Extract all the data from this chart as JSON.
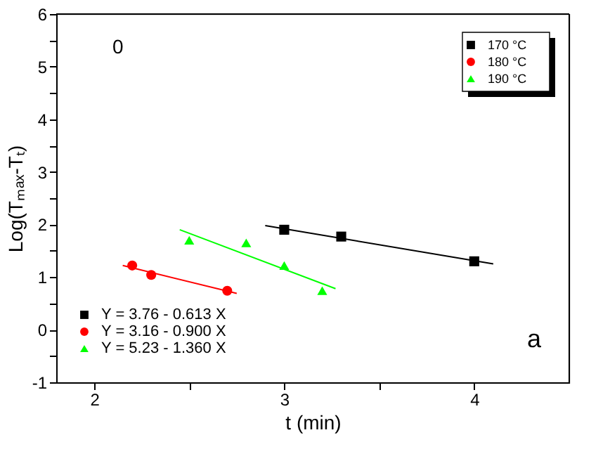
{
  "chart_data": {
    "type": "scatter",
    "xlabel": "t (min)",
    "ylabel": "Log(Tₘₐₓ-Tₜ)",
    "xlim": [
      1.8,
      4.5
    ],
    "ylim": [
      -1,
      6
    ],
    "xticks": [
      2,
      {
        "value": 2.5,
        "label": null
      },
      3,
      {
        "value": 3.5,
        "label": null
      },
      4
    ],
    "yticks": [
      -1,
      {
        "value": -0.5,
        "label": null
      },
      0,
      {
        "value": 0.5,
        "label": null
      },
      1,
      {
        "value": 1.5,
        "label": null
      },
      2,
      {
        "value": 2.5,
        "label": null
      },
      3,
      {
        "value": 3.5,
        "label": null
      },
      4,
      {
        "value": 4.5,
        "label": null
      },
      5,
      {
        "value": 5.5,
        "label": null
      },
      6
    ],
    "grid": false,
    "legend": "top right",
    "annotations": [
      "0",
      "a"
    ],
    "series": [
      {
        "name": "170 °C",
        "color": "#000000",
        "marker": "square",
        "x": [
          3.0,
          3.3,
          4.0
        ],
        "values": [
          1.9,
          1.77,
          1.3
        ]
      },
      {
        "name": "180 °C",
        "color": "#ff0000",
        "marker": "circle",
        "x": [
          2.2,
          2.3,
          2.7
        ],
        "values": [
          1.22,
          1.04,
          0.74
        ]
      },
      {
        "name": "190 °C",
        "color": "#00ff00",
        "marker": "triangle",
        "x": [
          2.5,
          2.8,
          3.0,
          3.2
        ],
        "values": [
          1.7,
          1.65,
          1.22,
          0.74
        ]
      },
      {
        "name": "Y = 3.76 - 0.613 X",
        "type": "line",
        "color": "#000000",
        "x": [
          2.9,
          4.1
        ],
        "values": [
          1.98,
          1.25
        ]
      },
      {
        "name": "Y = 3.16 - 0.900 X",
        "type": "line",
        "color": "#ff0000",
        "x": [
          2.15,
          2.75
        ],
        "values": [
          1.22,
          0.69
        ]
      },
      {
        "name": "Y = 5.23 - 1.360 X",
        "type": "line",
        "color": "#00ff00",
        "x": [
          2.45,
          3.27
        ],
        "values": [
          1.9,
          0.78
        ]
      }
    ]
  }
}
